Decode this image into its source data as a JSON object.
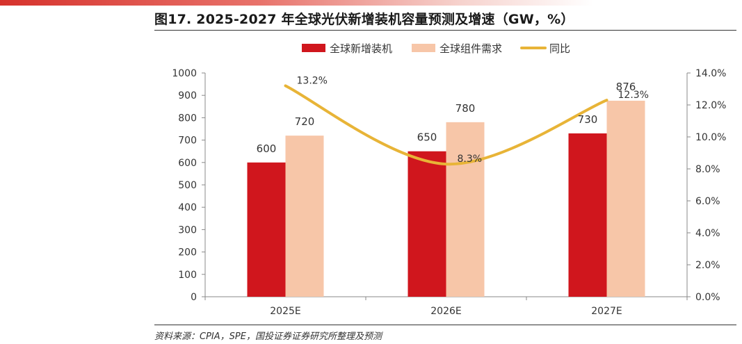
{
  "header": {
    "title": "图17. 2025-2027 年全球光伏新增装机容量预测及增速（GW，%）"
  },
  "footer": {
    "source": "资料来源：CPIA，SPE，国投证券证券研究所整理及预测"
  },
  "chart_data": {
    "type": "bar",
    "categories": [
      "2025E",
      "2026E",
      "2027E"
    ],
    "series": [
      {
        "name": "全球新增装机",
        "type": "bar",
        "axis": "left",
        "values": [
          600,
          650,
          730
        ],
        "labels": [
          "600",
          "650",
          "730"
        ],
        "color": "#d0161d"
      },
      {
        "name": "全球组件需求",
        "type": "bar",
        "axis": "left",
        "values": [
          720,
          780,
          876
        ],
        "labels": [
          "720",
          "780",
          "876"
        ],
        "color": "#f7c6a8"
      },
      {
        "name": "同比",
        "type": "line",
        "axis": "right",
        "values": [
          13.2,
          8.3,
          12.3
        ],
        "labels": [
          "13.2%",
          "8.3%",
          "12.3%"
        ],
        "color": "#e8b437"
      }
    ],
    "y_left": {
      "min": 0,
      "max": 1000,
      "step": 100,
      "ticks": [
        "0",
        "100",
        "200",
        "300",
        "400",
        "500",
        "600",
        "700",
        "800",
        "900",
        "1000"
      ]
    },
    "y_right": {
      "min": 0,
      "max": 14,
      "step": 2,
      "ticks": [
        "0.0%",
        "2.0%",
        "4.0%",
        "6.0%",
        "8.0%",
        "10.0%",
        "12.0%",
        "14.0%"
      ]
    },
    "legend_position": "top-center",
    "grid": false,
    "colors": {
      "accent": "#d6322c",
      "axis": "#888888"
    }
  }
}
